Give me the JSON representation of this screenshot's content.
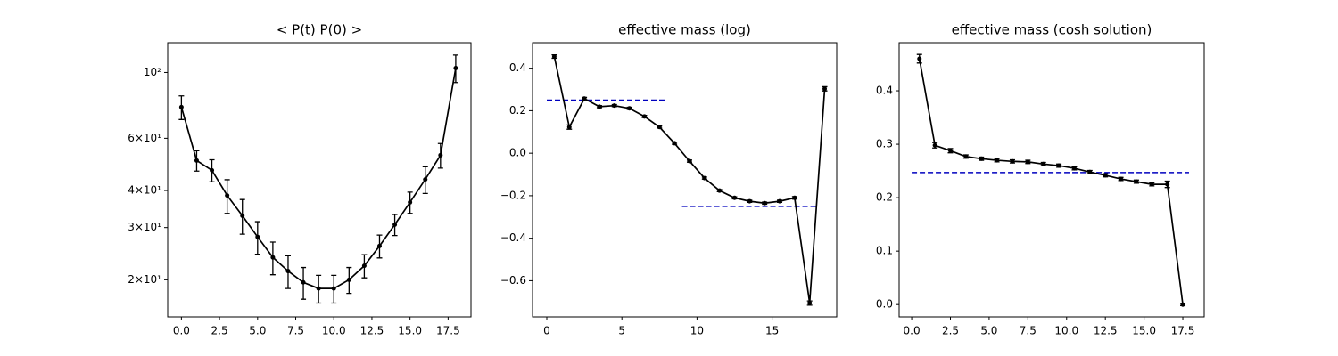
{
  "chart_data": [
    {
      "type": "line",
      "title": "< P(t)  P(0) >",
      "log_y": true,
      "x": [
        0,
        1,
        2,
        3,
        4,
        5,
        6,
        7,
        8,
        9,
        10,
        11,
        12,
        13,
        14,
        15,
        16,
        17,
        18
      ],
      "series": [
        {
          "color": "#000000",
          "values": [
            76.4,
            50.5,
            46.8,
            38.5,
            32.9,
            27.9,
            23.8,
            21.4,
            19.6,
            18.7,
            18.7,
            20.0,
            22.3,
            26.0,
            30.7,
            36.5,
            43.6,
            52.6,
            103.5
          ],
          "errors": [
            7,
            4,
            4,
            5,
            4.4,
            3.5,
            3,
            2.7,
            2.4,
            2,
            2,
            2,
            2,
            2.3,
            2.5,
            3,
            4.5,
            5,
            11
          ]
        }
      ],
      "xlim": [
        -0.9,
        19
      ],
      "ylim": [
        15,
        126
      ],
      "xticks": [
        {
          "value": 0,
          "label": "0.0"
        },
        {
          "value": 2.5,
          "label": "2.5"
        },
        {
          "value": 5,
          "label": "5.0"
        },
        {
          "value": 7.5,
          "label": "7.5"
        },
        {
          "value": 10,
          "label": "10.0"
        },
        {
          "value": 12.5,
          "label": "12.5"
        },
        {
          "value": 15,
          "label": "15.0"
        },
        {
          "value": 17.5,
          "label": "17.5"
        }
      ],
      "yticks": [
        {
          "value": 20,
          "label": "2×10¹"
        },
        {
          "value": 30,
          "label": "3×10¹"
        },
        {
          "value": 40,
          "label": "4×10¹"
        },
        {
          "value": 60,
          "label": "6×10¹"
        },
        {
          "value": 100,
          "label": "10²"
        }
      ],
      "hlines": []
    },
    {
      "type": "line",
      "title": "effective mass (log)",
      "log_y": false,
      "x": [
        0.5,
        1.5,
        2.5,
        3.5,
        4.5,
        5.5,
        6.5,
        7.5,
        8.5,
        9.5,
        10.5,
        11.5,
        12.5,
        13.5,
        14.5,
        15.5,
        16.5,
        17.5,
        18.5
      ],
      "series": [
        {
          "color": "#000000",
          "values": [
            0.455,
            0.123,
            0.257,
            0.219,
            0.224,
            0.211,
            0.173,
            0.123,
            0.047,
            -0.037,
            -0.117,
            -0.176,
            -0.21,
            -0.226,
            -0.235,
            -0.226,
            -0.21,
            -0.705,
            0.303
          ],
          "errors": [
            0.008,
            0.01,
            0.006,
            0.005,
            0.005,
            0.005,
            0.005,
            0.005,
            0.005,
            0.005,
            0.005,
            0.005,
            0.005,
            0.005,
            0.005,
            0.005,
            0.006,
            0.01,
            0.01
          ]
        }
      ],
      "xlim": [
        -0.95,
        19.3
      ],
      "ylim": [
        -0.77,
        0.52
      ],
      "xticks": [
        0,
        5,
        10,
        15
      ],
      "yticks": [
        {
          "value": -0.6,
          "label": "−0.6"
        },
        {
          "value": -0.4,
          "label": "−0.4"
        },
        {
          "value": -0.2,
          "label": "−0.2"
        },
        {
          "value": 0,
          "label": "0.0"
        },
        {
          "value": 0.2,
          "label": "0.2"
        },
        {
          "value": 0.4,
          "label": "0.4"
        }
      ],
      "hlines": [
        {
          "y": 0.25,
          "xmin": 0,
          "xmax": 8,
          "color": "#0000bf",
          "dashed": true
        },
        {
          "y": -0.25,
          "xmin": 9,
          "xmax": 18,
          "color": "#0000bf",
          "dashed": true
        }
      ]
    },
    {
      "type": "line",
      "title": "effective mass (cosh solution)",
      "log_y": false,
      "x": [
        0.5,
        1.5,
        2.5,
        3.5,
        4.5,
        5.5,
        6.5,
        7.5,
        8.5,
        9.5,
        10.5,
        11.5,
        12.5,
        13.5,
        14.5,
        15.5,
        16.5,
        17.5
      ],
      "series": [
        {
          "color": "#000000",
          "values": [
            0.46,
            0.298,
            0.288,
            0.277,
            0.273,
            0.27,
            0.268,
            0.267,
            0.263,
            0.26,
            0.255,
            0.248,
            0.242,
            0.235,
            0.23,
            0.225,
            0.225,
            0.0
          ],
          "errors": [
            0.008,
            0.005,
            0.004,
            0.003,
            0.003,
            0.003,
            0.003,
            0.003,
            0.003,
            0.003,
            0.003,
            0.003,
            0.003,
            0.003,
            0.003,
            0.003,
            0.006,
            0.002
          ]
        }
      ],
      "xlim": [
        -0.81,
        18.88
      ],
      "ylim": [
        -0.023,
        0.49
      ],
      "xticks": [
        {
          "value": 0,
          "label": "0.0"
        },
        2.5,
        {
          "value": 5,
          "label": "5.0"
        },
        7.5,
        {
          "value": 10,
          "label": "10.0"
        },
        12.5,
        {
          "value": 15,
          "label": "15.0"
        },
        17.5
      ],
      "yticks": [
        {
          "value": 0,
          "label": "0.0"
        },
        0.1,
        0.2,
        0.3,
        0.4
      ],
      "hlines": [
        {
          "y": 0.247,
          "xmin": 0,
          "xmax": 17.9,
          "color": "#0000bf",
          "dashed": true
        }
      ]
    }
  ]
}
